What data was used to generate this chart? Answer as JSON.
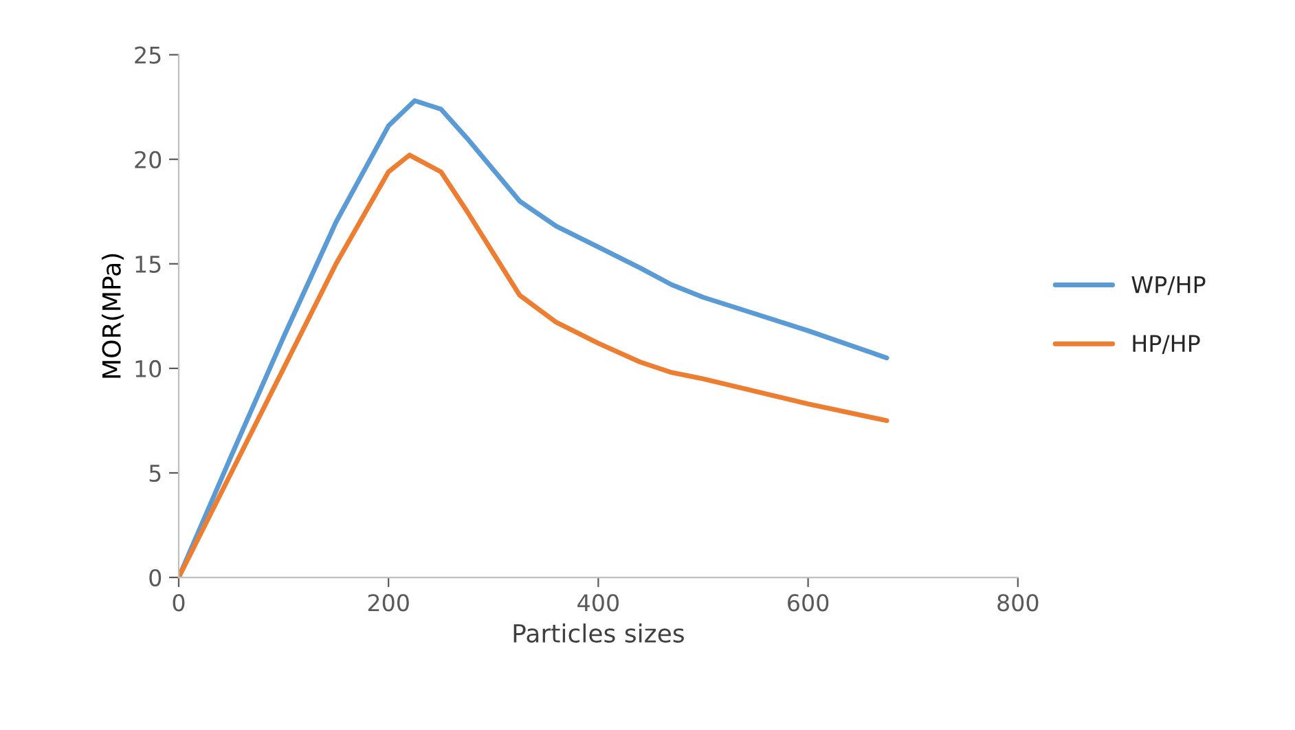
{
  "chart_data": {
    "type": "line",
    "xlabel": "Particles sizes",
    "ylabel": "MOR(MPa)",
    "xlim": [
      0,
      800
    ],
    "xticks": [
      0,
      200,
      400,
      600,
      800
    ],
    "ylim": [
      0,
      25
    ],
    "yticks": [
      0,
      5,
      10,
      15,
      20,
      25
    ],
    "grid": false,
    "legend": "right",
    "marker": "none",
    "line_style": "solid",
    "series": [
      {
        "name": "WP/HP",
        "color": "#5b9bd5",
        "x": [
          0,
          50,
          100,
          150,
          200,
          225,
          250,
          275,
          300,
          325,
          360,
          400,
          440,
          470,
          500,
          550,
          600,
          675
        ],
        "values": [
          0,
          5.8,
          11.5,
          17,
          21.6,
          22.8,
          22.4,
          21,
          19.5,
          18,
          16.8,
          15.8,
          14.8,
          14,
          13.4,
          12.6,
          11.8,
          10.5
        ]
      },
      {
        "name": "HP/HP",
        "color": "#ed7d31",
        "x": [
          0,
          50,
          100,
          150,
          200,
          220,
          250,
          275,
          300,
          325,
          360,
          400,
          440,
          470,
          500,
          550,
          600,
          675
        ],
        "values": [
          0,
          5,
          10,
          15,
          19.4,
          20.2,
          19.4,
          17.5,
          15.5,
          13.5,
          12.2,
          11.2,
          10.3,
          9.8,
          9.5,
          8.9,
          8.3,
          7.5
        ]
      }
    ]
  }
}
